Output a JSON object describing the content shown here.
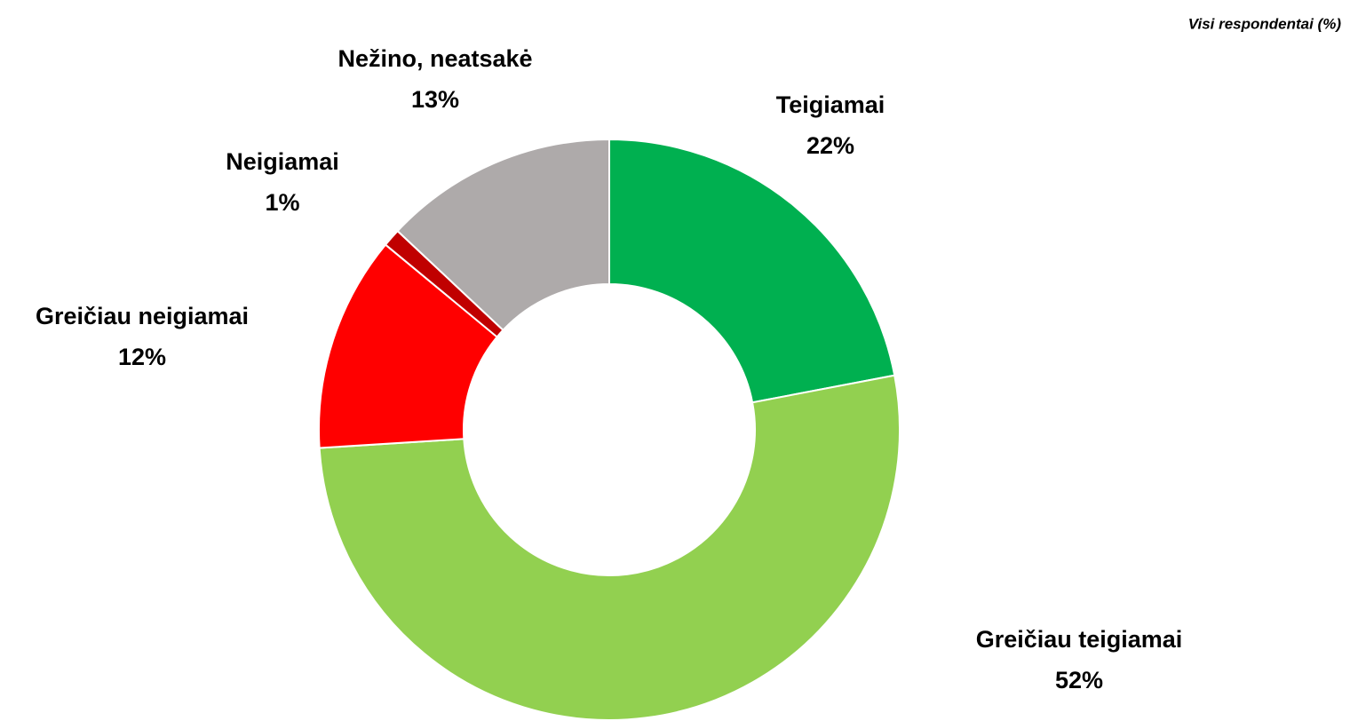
{
  "chart_data": {
    "type": "donut",
    "subtitle": "Visi respondentai (%)",
    "categories": [
      "Teigiamai",
      "Greičiau teigiamai",
      "Greičiau neigiamai",
      "Neigiamai",
      "Nežino, neatsakė"
    ],
    "values": [
      22,
      52,
      12,
      1,
      13
    ],
    "value_labels": [
      "22%",
      "52%",
      "12%",
      "1%",
      "13%"
    ],
    "colors": [
      "#00b050",
      "#92d050",
      "#ff0000",
      "#c00000",
      "#aeaaaa"
    ]
  }
}
